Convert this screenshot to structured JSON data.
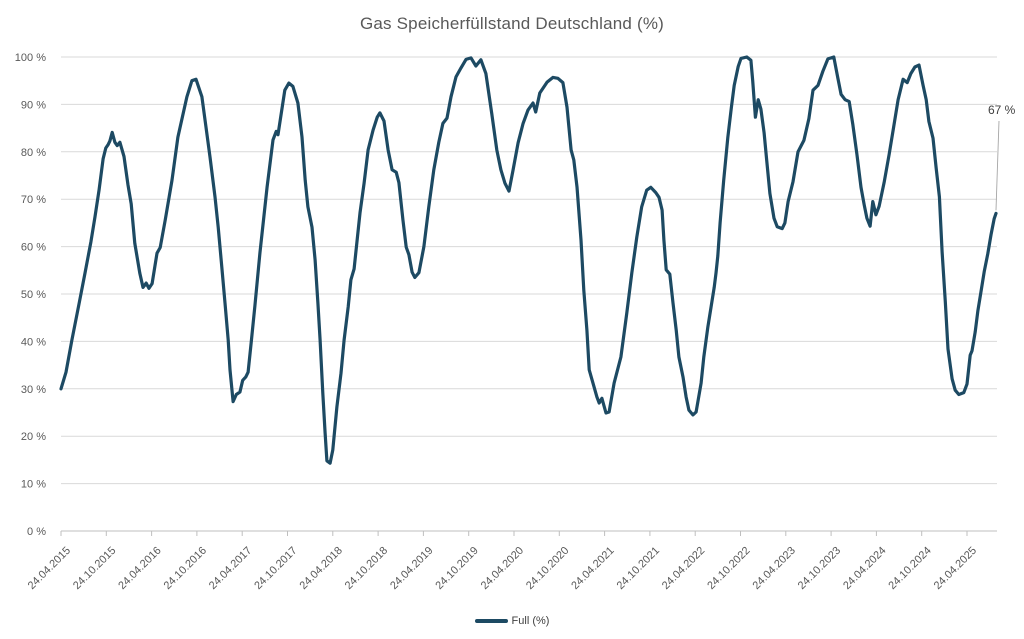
{
  "title": "Gas Speicherfüllstand Deutschland (%)",
  "annotation": {
    "label": "67 %"
  },
  "legend": {
    "label": "Full (%)"
  },
  "colors": {
    "series": "#1d4a63",
    "grid": "#d9d9d9",
    "axis": "#bfbfbf",
    "title_text": "#595959",
    "tick_text": "#595959",
    "annotation_text": "#404040",
    "leader_line": "#a6a6a6",
    "background": "#ffffff"
  },
  "chart_data": {
    "type": "line",
    "title": "Gas Speicherfüllstand Deutschland (%)",
    "xlabel": "",
    "ylabel": "",
    "ylim": [
      0,
      100
    ],
    "y_ticks": [
      0,
      10,
      20,
      30,
      40,
      50,
      60,
      70,
      80,
      90,
      100
    ],
    "y_tick_suffix": " %",
    "grid": "horizontal",
    "legend_position": "bottom-center",
    "x_tick_labels": [
      "24.04.2015",
      "24.10.2015",
      "24.04.2016",
      "24.10.2016",
      "24.04.2017",
      "24.10.2017",
      "24.04.2018",
      "24.10.2018",
      "24.04.2019",
      "24.10.2019",
      "24.04.2020",
      "24.10.2020",
      "24.04.2021",
      "24.10.2021",
      "24.04.2022",
      "24.10.2022",
      "24.04.2023",
      "24.10.2023",
      "24.04.2024",
      "24.10.2024",
      "24.04.2025"
    ],
    "x_unit": "half-years since 24.04.2015 (one unit per x tick)",
    "last_value_label": "67 %",
    "series": [
      {
        "name": "Full (%)",
        "color": "#1d4a63",
        "points": [
          [
            0.0,
            30
          ],
          [
            0.11,
            33.5
          ],
          [
            0.24,
            40.3
          ],
          [
            0.4,
            48
          ],
          [
            0.53,
            54.4
          ],
          [
            0.66,
            61
          ],
          [
            0.75,
            66.3
          ],
          [
            0.84,
            72
          ],
          [
            0.93,
            78.5
          ],
          [
            0.99,
            80.8
          ],
          [
            1.04,
            81.5
          ],
          [
            1.08,
            82.3
          ],
          [
            1.13,
            84.1
          ],
          [
            1.19,
            82
          ],
          [
            1.24,
            81.3
          ],
          [
            1.3,
            82
          ],
          [
            1.39,
            79
          ],
          [
            1.48,
            73
          ],
          [
            1.55,
            69
          ],
          [
            1.63,
            60.7
          ],
          [
            1.74,
            54.4
          ],
          [
            1.81,
            51.4
          ],
          [
            1.88,
            52.3
          ],
          [
            1.94,
            51.2
          ],
          [
            2.01,
            52.2
          ],
          [
            2.12,
            58.6
          ],
          [
            2.19,
            59.8
          ],
          [
            2.3,
            65.6
          ],
          [
            2.45,
            74
          ],
          [
            2.58,
            83.1
          ],
          [
            2.78,
            91.6
          ],
          [
            2.89,
            95
          ],
          [
            2.98,
            95.3
          ],
          [
            3.11,
            91.6
          ],
          [
            3.2,
            85.2
          ],
          [
            3.29,
            78.9
          ],
          [
            3.4,
            70.5
          ],
          [
            3.47,
            64.1
          ],
          [
            3.55,
            55.7
          ],
          [
            3.62,
            48.1
          ],
          [
            3.69,
            40.3
          ],
          [
            3.73,
            34
          ],
          [
            3.8,
            27.3
          ],
          [
            3.87,
            28.8
          ],
          [
            3.95,
            29.3
          ],
          [
            4.01,
            31.8
          ],
          [
            4.08,
            32.5
          ],
          [
            4.13,
            33.5
          ],
          [
            4.2,
            40
          ],
          [
            4.28,
            47.5
          ],
          [
            4.39,
            58.6
          ],
          [
            4.55,
            72.6
          ],
          [
            4.68,
            82.5
          ],
          [
            4.75,
            84.3
          ],
          [
            4.79,
            83.6
          ],
          [
            4.94,
            93
          ],
          [
            5.03,
            94.5
          ],
          [
            5.12,
            93.8
          ],
          [
            5.23,
            90.3
          ],
          [
            5.32,
            83.1
          ],
          [
            5.39,
            74
          ],
          [
            5.45,
            68.4
          ],
          [
            5.54,
            64.1
          ],
          [
            5.61,
            57.2
          ],
          [
            5.67,
            48.1
          ],
          [
            5.72,
            40.3
          ],
          [
            5.78,
            29.1
          ],
          [
            5.83,
            20.7
          ],
          [
            5.87,
            14.8
          ],
          [
            5.94,
            14.3
          ],
          [
            6.0,
            17.1
          ],
          [
            6.09,
            26.2
          ],
          [
            6.18,
            33.3
          ],
          [
            6.25,
            40.3
          ],
          [
            6.34,
            47.3
          ],
          [
            6.4,
            53
          ],
          [
            6.47,
            55.3
          ],
          [
            6.6,
            67.1
          ],
          [
            6.69,
            73.4
          ],
          [
            6.78,
            80.4
          ],
          [
            6.89,
            84.6
          ],
          [
            6.98,
            87.3
          ],
          [
            7.04,
            88.2
          ],
          [
            7.13,
            86.5
          ],
          [
            7.22,
            80.4
          ],
          [
            7.31,
            76.2
          ],
          [
            7.4,
            75.7
          ],
          [
            7.46,
            73.5
          ],
          [
            7.55,
            65.5
          ],
          [
            7.62,
            59.9
          ],
          [
            7.68,
            58.3
          ],
          [
            7.75,
            54.6
          ],
          [
            7.81,
            53.5
          ],
          [
            7.9,
            54.5
          ],
          [
            8.01,
            60
          ],
          [
            8.12,
            68.4
          ],
          [
            8.23,
            76.2
          ],
          [
            8.34,
            82
          ],
          [
            8.43,
            86
          ],
          [
            8.52,
            87.1
          ],
          [
            8.61,
            91.6
          ],
          [
            8.72,
            95.8
          ],
          [
            8.83,
            97.7
          ],
          [
            8.94,
            99.5
          ],
          [
            9.05,
            99.8
          ],
          [
            9.16,
            98.1
          ],
          [
            9.27,
            99.4
          ],
          [
            9.38,
            96.5
          ],
          [
            9.51,
            88
          ],
          [
            9.62,
            80.4
          ],
          [
            9.71,
            76.2
          ],
          [
            9.8,
            73.4
          ],
          [
            9.89,
            71.7
          ],
          [
            9.98,
            76.2
          ],
          [
            10.09,
            81.9
          ],
          [
            10.2,
            86
          ],
          [
            10.31,
            88.8
          ],
          [
            10.42,
            90.3
          ],
          [
            10.48,
            88.4
          ],
          [
            10.57,
            92.4
          ],
          [
            10.73,
            94.7
          ],
          [
            10.86,
            95.7
          ],
          [
            10.97,
            95.5
          ],
          [
            11.08,
            94.6
          ],
          [
            11.17,
            89.4
          ],
          [
            11.26,
            80.4
          ],
          [
            11.32,
            78.3
          ],
          [
            11.39,
            72.6
          ],
          [
            11.48,
            61.4
          ],
          [
            11.54,
            50.8
          ],
          [
            11.61,
            42.4
          ],
          [
            11.66,
            34
          ],
          [
            11.72,
            32
          ],
          [
            11.83,
            28.3
          ],
          [
            11.88,
            27
          ],
          [
            11.94,
            28
          ],
          [
            12.03,
            24.9
          ],
          [
            12.1,
            25.1
          ],
          [
            12.21,
            31.2
          ],
          [
            12.36,
            36.7
          ],
          [
            12.49,
            46
          ],
          [
            12.6,
            54.4
          ],
          [
            12.71,
            62
          ],
          [
            12.82,
            68.4
          ],
          [
            12.93,
            71.9
          ],
          [
            13.02,
            72.5
          ],
          [
            13.13,
            71.4
          ],
          [
            13.2,
            70.4
          ],
          [
            13.27,
            67.7
          ],
          [
            13.31,
            61.4
          ],
          [
            13.36,
            55.1
          ],
          [
            13.44,
            54.2
          ],
          [
            13.51,
            48.1
          ],
          [
            13.58,
            42.4
          ],
          [
            13.64,
            36.7
          ],
          [
            13.73,
            32.5
          ],
          [
            13.8,
            28.3
          ],
          [
            13.86,
            25.5
          ],
          [
            13.95,
            24.5
          ],
          [
            14.02,
            25.1
          ],
          [
            14.13,
            31.2
          ],
          [
            14.19,
            36.7
          ],
          [
            14.28,
            43.1
          ],
          [
            14.35,
            47.3
          ],
          [
            14.42,
            51.4
          ],
          [
            14.46,
            54.4
          ],
          [
            14.5,
            58
          ],
          [
            14.55,
            65
          ],
          [
            14.63,
            74
          ],
          [
            14.72,
            83
          ],
          [
            14.8,
            89.4
          ],
          [
            14.86,
            94
          ],
          [
            14.95,
            98
          ],
          [
            15.01,
            99.7
          ],
          [
            15.14,
            100
          ],
          [
            15.23,
            99.3
          ],
          [
            15.27,
            95
          ],
          [
            15.33,
            87.3
          ],
          [
            15.39,
            91
          ],
          [
            15.45,
            89
          ],
          [
            15.52,
            84
          ],
          [
            15.58,
            78
          ],
          [
            15.65,
            71.2
          ],
          [
            15.74,
            66
          ],
          [
            15.81,
            64.2
          ],
          [
            15.92,
            63.8
          ],
          [
            15.98,
            65
          ],
          [
            16.05,
            69.5
          ],
          [
            16.16,
            73.7
          ],
          [
            16.27,
            80
          ],
          [
            16.4,
            82.4
          ],
          [
            16.51,
            87
          ],
          [
            16.6,
            93
          ],
          [
            16.71,
            94
          ],
          [
            16.82,
            97
          ],
          [
            16.93,
            99.6
          ],
          [
            17.06,
            100
          ],
          [
            17.15,
            95.5
          ],
          [
            17.22,
            92.1
          ],
          [
            17.31,
            91
          ],
          [
            17.4,
            90.6
          ],
          [
            17.48,
            85.8
          ],
          [
            17.57,
            79.5
          ],
          [
            17.66,
            72.5
          ],
          [
            17.73,
            68.8
          ],
          [
            17.79,
            66
          ],
          [
            17.86,
            64.3
          ],
          [
            17.92,
            69.5
          ],
          [
            17.99,
            66.7
          ],
          [
            18.06,
            68.5
          ],
          [
            18.17,
            73.5
          ],
          [
            18.28,
            79.4
          ],
          [
            18.39,
            85.8
          ],
          [
            18.48,
            91
          ],
          [
            18.59,
            95.3
          ],
          [
            18.68,
            94.6
          ],
          [
            18.76,
            96.5
          ],
          [
            18.85,
            97.9
          ],
          [
            18.94,
            98.3
          ],
          [
            19.03,
            94
          ],
          [
            19.1,
            91
          ],
          [
            19.16,
            86.4
          ],
          [
            19.25,
            82.9
          ],
          [
            19.32,
            76.5
          ],
          [
            19.39,
            70.5
          ],
          [
            19.45,
            58.9
          ],
          [
            19.52,
            48.4
          ],
          [
            19.58,
            38.4
          ],
          [
            19.67,
            32.1
          ],
          [
            19.74,
            29.7
          ],
          [
            19.82,
            28.8
          ],
          [
            19.93,
            29.2
          ],
          [
            20.0,
            31
          ],
          [
            20.07,
            37.1
          ],
          [
            20.11,
            38
          ],
          [
            20.18,
            42
          ],
          [
            20.24,
            46.5
          ],
          [
            20.31,
            50.5
          ],
          [
            20.38,
            54.7
          ],
          [
            20.46,
            58.5
          ],
          [
            20.53,
            62.5
          ],
          [
            20.6,
            65.9
          ],
          [
            20.64,
            67
          ]
        ]
      }
    ]
  }
}
